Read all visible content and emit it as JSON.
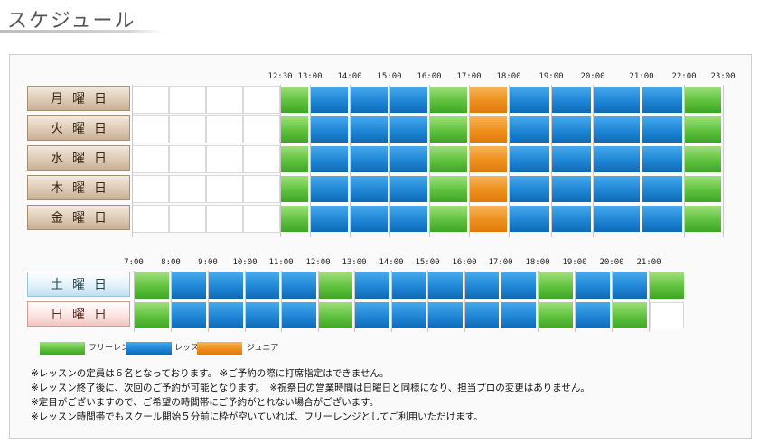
{
  "header": {
    "title": "スケジュール"
  },
  "weekday_block": {
    "times": [
      "12:30",
      "13:00",
      "14:00",
      "15:00",
      "16:00",
      "17:00",
      "18:00",
      "19:00",
      "20:00",
      "21:00",
      "22:00",
      "23:00"
    ],
    "days": [
      "月曜日",
      "火曜日",
      "水曜日",
      "木曜日",
      "金曜日"
    ],
    "slots": [
      "free",
      "lesson",
      "lesson",
      "lesson",
      "free",
      "junior",
      "lesson",
      "lesson",
      "lesson",
      "lesson",
      "free"
    ]
  },
  "weekend_block": {
    "times": [
      "7:00",
      "8:00",
      "9:00",
      "10:00",
      "11:00",
      "12:00",
      "13:00",
      "14:00",
      "15:00",
      "16:00",
      "17:00",
      "18:00",
      "19:00",
      "20:00",
      "21:00"
    ],
    "days": [
      {
        "label": "土曜日",
        "type": "sat",
        "slots": [
          "free",
          "lesson",
          "lesson",
          "lesson",
          "lesson",
          "free",
          "lesson",
          "lesson",
          "lesson",
          "lesson",
          "lesson",
          "free",
          "lesson",
          "lesson",
          "free"
        ]
      },
      {
        "label": "日曜日",
        "type": "sun",
        "slots": [
          "free",
          "lesson",
          "lesson",
          "lesson",
          "lesson",
          "free",
          "lesson",
          "lesson",
          "lesson",
          "lesson",
          "lesson",
          "free",
          "lesson",
          "free",
          "empty"
        ]
      }
    ]
  },
  "legend": [
    {
      "key": "free",
      "label": "フリーレンジ"
    },
    {
      "key": "lesson",
      "label": "レッスン"
    },
    {
      "key": "junior",
      "label": "ジュニア"
    }
  ],
  "notes": [
    "※レッスンの定員は６名となっております。 ※ご予約の際に打席指定はできません。",
    "※レッスン終了後に、次回のご予約が可能となります。　※祝祭日の営業時間は日曜日と同様になり、担当プロの変更はありません。",
    "※定目がございますので、ご希望の時間帯にご予約がとれない場合がございます。",
    "※レッスン時間帯でもスクール開始５分前に枠が空いていれば、フリーレンジとしてご利用いただけます。"
  ],
  "colors": {
    "free": "#5fc13e",
    "lesson": "#1f86d5",
    "junior": "#ee8f1d"
  }
}
